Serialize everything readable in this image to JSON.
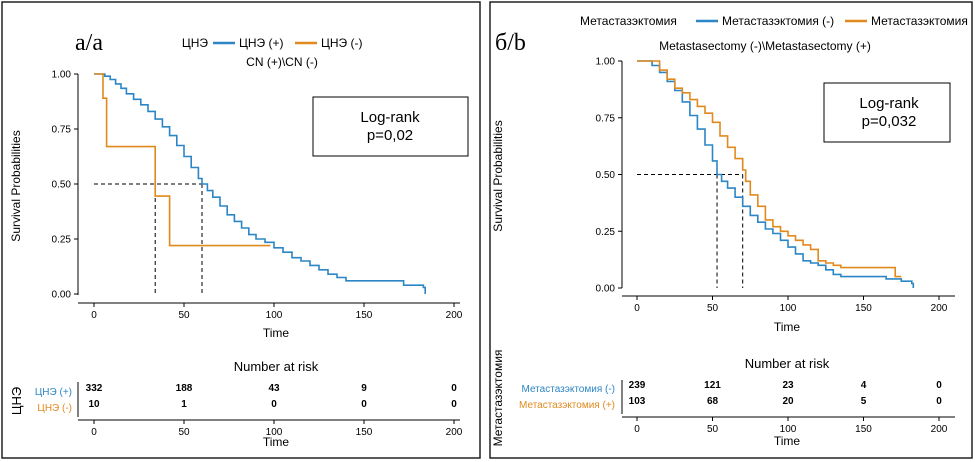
{
  "chart_data": [
    {
      "type": "line",
      "panel_label": "а/a",
      "legend": {
        "title": "ЦНЭ",
        "placement": "top"
      },
      "subtitle": "CN (+)\\CN (-)",
      "xlabel": "Time",
      "ylabel": "Survival Probabilities",
      "xlim": [
        0,
        200
      ],
      "ylim": [
        0,
        1
      ],
      "xticks": [
        "0",
        "50",
        "100",
        "150",
        "200"
      ],
      "yticks": [
        "0.00",
        "0.25",
        "0.50",
        "0.75",
        "1.00"
      ],
      "annotation": {
        "line1": "Log-rank",
        "line2": "p=0,02"
      },
      "median_lines": [
        {
          "series": "ЦНЭ (-)",
          "x": 34,
          "y": 0.5
        },
        {
          "series": "ЦНЭ (+)",
          "x": 60,
          "y": 0.5
        }
      ],
      "series": [
        {
          "name": "ЦНЭ (+)",
          "color": "#2C86C6",
          "points": [
            [
              0,
              1
            ],
            [
              3,
              1
            ],
            [
              6,
              0.99
            ],
            [
              9,
              0.975
            ],
            [
              12,
              0.955
            ],
            [
              15,
              0.935
            ],
            [
              18,
              0.91
            ],
            [
              22,
              0.885
            ],
            [
              26,
              0.86
            ],
            [
              30,
              0.83
            ],
            [
              34,
              0.795
            ],
            [
              38,
              0.76
            ],
            [
              42,
              0.72
            ],
            [
              46,
              0.675
            ],
            [
              50,
              0.625
            ],
            [
              54,
              0.575
            ],
            [
              58,
              0.525
            ],
            [
              60,
              0.5
            ],
            [
              63,
              0.47
            ],
            [
              66,
              0.44
            ],
            [
              70,
              0.4
            ],
            [
              74,
              0.36
            ],
            [
              78,
              0.33
            ],
            [
              82,
              0.3
            ],
            [
              86,
              0.27
            ],
            [
              90,
              0.25
            ],
            [
              95,
              0.235
            ],
            [
              100,
              0.21
            ],
            [
              105,
              0.19
            ],
            [
              110,
              0.165
            ],
            [
              115,
              0.15
            ],
            [
              120,
              0.13
            ],
            [
              125,
              0.11
            ],
            [
              130,
              0.09
            ],
            [
              135,
              0.075
            ],
            [
              140,
              0.06
            ],
            [
              145,
              0.06
            ],
            [
              150,
              0.06
            ],
            [
              155,
              0.06
            ],
            [
              160,
              0.06
            ],
            [
              165,
              0.06
            ],
            [
              170,
              0.06
            ],
            [
              172,
              0.04
            ],
            [
              180,
              0.04
            ],
            [
              183,
              0.03
            ],
            [
              184,
              0.0
            ]
          ]
        },
        {
          "name": "ЦНЭ (-)",
          "color": "#E08A1E",
          "points": [
            [
              0,
              1
            ],
            [
              5,
              1
            ],
            [
              5,
              0.89
            ],
            [
              7,
              0.89
            ],
            [
              7,
              0.67
            ],
            [
              34,
              0.67
            ],
            [
              34,
              0.445
            ],
            [
              42,
              0.445
            ],
            [
              42,
              0.22
            ],
            [
              98,
              0.22
            ]
          ]
        }
      ],
      "risk_table": {
        "title": "Number at risk",
        "ylabel": "ЦНЭ",
        "xlabel": "Time",
        "times": [
          "0",
          "50",
          "100",
          "150",
          "200"
        ],
        "rows": [
          {
            "label": "ЦНЭ (+)",
            "color": "#2C86C6",
            "values": [
              "332",
              "188",
              "43",
              "9",
              "0"
            ]
          },
          {
            "label": "ЦНЭ (-)",
            "color": "#E08A1E",
            "values": [
              "10",
              "1",
              "0",
              "0",
              "0"
            ]
          }
        ]
      }
    },
    {
      "type": "line",
      "panel_label": "б/b",
      "legend": {
        "title": "Метастазэктомия",
        "placement": "top"
      },
      "subtitle": "Metastasectomy (-)\\Metastasectomy (+)",
      "xlabel": "Time",
      "ylabel": "Survival Probabilities",
      "xlim": [
        0,
        200
      ],
      "ylim": [
        0,
        1
      ],
      "xticks": [
        "0",
        "50",
        "100",
        "150",
        "200"
      ],
      "yticks": [
        "0.00",
        "0.25",
        "0.50",
        "0.75",
        "1.00"
      ],
      "annotation": {
        "line1": "Log-rank",
        "line2": "p=0,032"
      },
      "median_lines": [
        {
          "series": "Метастазэктомия (-)",
          "x": 53,
          "y": 0.5
        },
        {
          "series": "Метастазэктомия (+)",
          "x": 70,
          "y": 0.5
        }
      ],
      "series": [
        {
          "name": "Метастазэктомия (-)",
          "color": "#2C86C6",
          "points": [
            [
              0,
              1
            ],
            [
              5,
              1
            ],
            [
              10,
              0.98
            ],
            [
              15,
              0.95
            ],
            [
              20,
              0.91
            ],
            [
              25,
              0.87
            ],
            [
              30,
              0.82
            ],
            [
              35,
              0.76
            ],
            [
              40,
              0.7
            ],
            [
              45,
              0.63
            ],
            [
              50,
              0.56
            ],
            [
              53,
              0.5
            ],
            [
              56,
              0.47
            ],
            [
              60,
              0.44
            ],
            [
              65,
              0.4
            ],
            [
              70,
              0.36
            ],
            [
              75,
              0.32
            ],
            [
              80,
              0.29
            ],
            [
              85,
              0.26
            ],
            [
              90,
              0.24
            ],
            [
              95,
              0.21
            ],
            [
              100,
              0.18
            ],
            [
              105,
              0.15
            ],
            [
              110,
              0.12
            ],
            [
              115,
              0.11
            ],
            [
              120,
              0.1
            ],
            [
              125,
              0.08
            ],
            [
              130,
              0.06
            ],
            [
              135,
              0.05
            ],
            [
              140,
              0.05
            ],
            [
              150,
              0.05
            ],
            [
              160,
              0.05
            ],
            [
              165,
              0.04
            ],
            [
              175,
              0.03
            ],
            [
              182,
              0.02
            ],
            [
              183,
              0.0
            ]
          ]
        },
        {
          "name": "Метастазэктомия (+)",
          "color": "#E08A1E",
          "points": [
            [
              0,
              1
            ],
            [
              10,
              1
            ],
            [
              15,
              0.96
            ],
            [
              20,
              0.92
            ],
            [
              25,
              0.88
            ],
            [
              30,
              0.86
            ],
            [
              35,
              0.83
            ],
            [
              40,
              0.8
            ],
            [
              45,
              0.77
            ],
            [
              50,
              0.73
            ],
            [
              55,
              0.67
            ],
            [
              60,
              0.62
            ],
            [
              65,
              0.57
            ],
            [
              70,
              0.52
            ],
            [
              72,
              0.47
            ],
            [
              75,
              0.41
            ],
            [
              80,
              0.36
            ],
            [
              85,
              0.3
            ],
            [
              90,
              0.27
            ],
            [
              95,
              0.25
            ],
            [
              100,
              0.23
            ],
            [
              105,
              0.21
            ],
            [
              110,
              0.19
            ],
            [
              115,
              0.17
            ],
            [
              120,
              0.12
            ],
            [
              125,
              0.11
            ],
            [
              130,
              0.1
            ],
            [
              135,
              0.09
            ],
            [
              140,
              0.09
            ],
            [
              150,
              0.09
            ],
            [
              160,
              0.09
            ],
            [
              170,
              0.09
            ],
            [
              171,
              0.05
            ],
            [
              175,
              0.05
            ]
          ]
        }
      ],
      "risk_table": {
        "title": "Number at risk",
        "ylabel": "Метастазэктомия",
        "xlabel": "Time",
        "times": [
          "0",
          "50",
          "100",
          "150",
          "200"
        ],
        "rows": [
          {
            "label": "Метастазэктомия (-)",
            "color": "#2C86C6",
            "values": [
              "239",
              "121",
              "23",
              "4",
              "0"
            ]
          },
          {
            "label": "Метастазэктомия (+)",
            "color": "#E08A1E",
            "values": [
              "103",
              "68",
              "20",
              "5",
              "0"
            ]
          }
        ]
      }
    }
  ]
}
